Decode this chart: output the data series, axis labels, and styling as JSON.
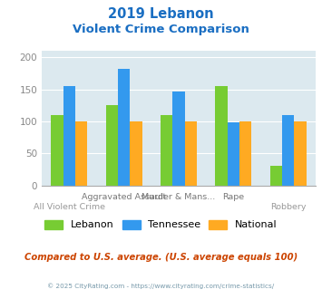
{
  "title_line1": "2019 Lebanon",
  "title_line2": "Violent Crime Comparison",
  "categories": [
    "All Violent Crime",
    "Aggravated Assault",
    "Murder & Mans...",
    "Rape",
    "Robbery"
  ],
  "top_labels": [
    "",
    "Aggravated Assault",
    "Murder & Mans...",
    "Rape",
    ""
  ],
  "bottom_labels": [
    "All Violent Crime",
    "",
    "",
    "",
    "Robbery"
  ],
  "series": {
    "Lebanon": [
      110,
      125,
      110,
      155,
      30
    ],
    "Tennessee": [
      155,
      182,
      147,
      98,
      110
    ],
    "National": [
      100,
      100,
      100,
      100,
      100
    ]
  },
  "colors": {
    "Lebanon": "#77cc33",
    "Tennessee": "#3399ee",
    "National": "#ffaa22"
  },
  "ylim": [
    0,
    210
  ],
  "yticks": [
    0,
    50,
    100,
    150,
    200
  ],
  "title_color": "#1a6ec2",
  "plot_bg_color": "#dce9ef",
  "footer_text": "Compared to U.S. average. (U.S. average equals 100)",
  "footer_color": "#cc4400",
  "copyright_text": "© 2025 CityRating.com - https://www.cityrating.com/crime-statistics/",
  "copyright_color": "#7799aa",
  "series_names": [
    "Lebanon",
    "Tennessee",
    "National"
  ]
}
